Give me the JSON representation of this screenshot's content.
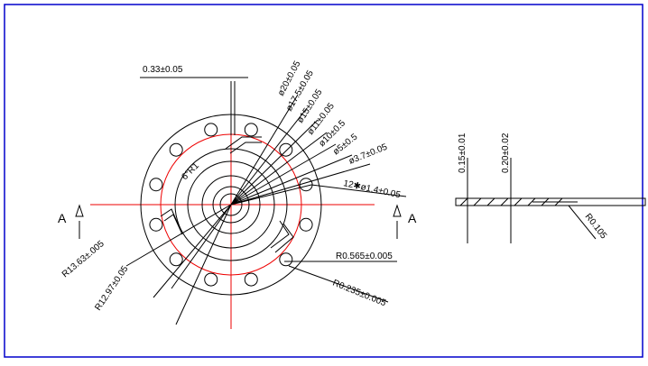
{
  "title_dim": "0.33±0.05",
  "diameters": [
    "ø20±0.05",
    "ø17.5±0.05",
    "ø15±0.05",
    "ø11±0.05",
    "ø10±0.5",
    "ø5±0.5",
    "ø3.7±0.05"
  ],
  "holes": "12✱ø1.4±0.05",
  "angle": "6°R1",
  "section_left": "A",
  "section_right": "A",
  "radii": [
    "R13.63±.005",
    "R12.97±0.05",
    "R0.565±0.005",
    "R0.235±0.005"
  ],
  "side_view": {
    "thickness_1": "0.15±0.01",
    "thickness_2": "0.20±0.02",
    "radius": "R0.105"
  }
}
